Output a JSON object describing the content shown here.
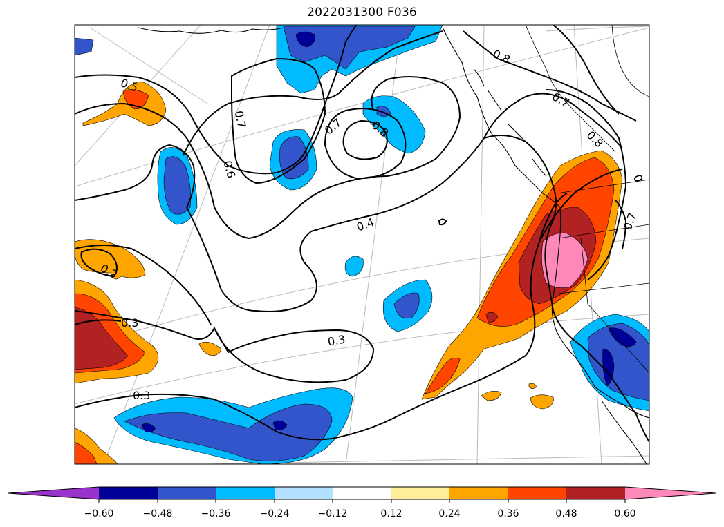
{
  "title": "2022031300 F036",
  "contour_labels": [
    "0.5",
    "0.7",
    "0.6",
    "0.7",
    "0.8",
    "0.8",
    "0.7",
    "0.4",
    "0.2",
    "0.3",
    "0.3",
    "0.3",
    "0",
    "0.7",
    "0.8"
  ],
  "colorbar": {
    "ticks": [
      "−0.60",
      "−0.48",
      "−0.36",
      "−0.24",
      "−0.12",
      "0.12",
      "0.24",
      "0.36",
      "0.48",
      "0.60"
    ],
    "colors": [
      "#9933cc",
      "#000099",
      "#3355cc",
      "#00bbff",
      "#b3e0ff",
      "#ffffff",
      "#ffee99",
      "#ffa500",
      "#ff4500",
      "#b22222",
      "#ff88bb"
    ]
  }
}
